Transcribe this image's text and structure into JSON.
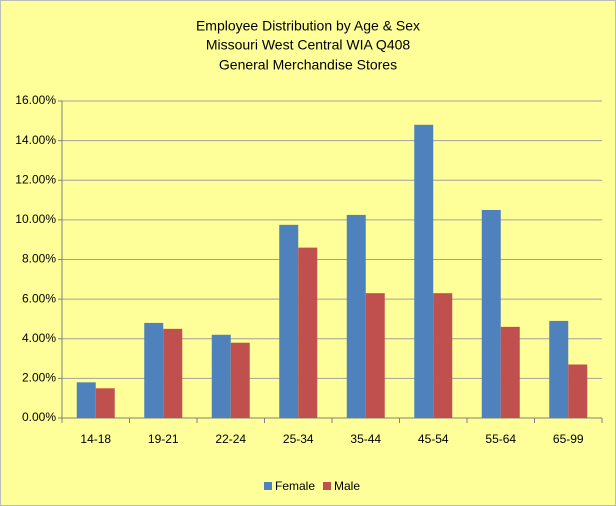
{
  "chart_data": {
    "type": "bar",
    "title": [
      "Employee Distribution by Age & Sex",
      "Missouri West Central WIA Q408",
      "General Merchandise Stores"
    ],
    "categories": [
      "14-18",
      "19-21",
      "22-24",
      "25-34",
      "35-44",
      "45-54",
      "55-64",
      "65-99"
    ],
    "series": [
      {
        "name": "Female",
        "color": "#4f81bd",
        "values": [
          1.8,
          4.8,
          4.2,
          9.75,
          10.25,
          14.8,
          10.5,
          4.9
        ]
      },
      {
        "name": "Male",
        "color": "#c0504d",
        "values": [
          1.5,
          4.5,
          3.8,
          8.6,
          6.3,
          6.3,
          4.6,
          2.7
        ]
      }
    ],
    "ylim": [
      0,
      16
    ],
    "yticks": [
      {
        "value": 0,
        "label": "0.00%"
      },
      {
        "value": 2,
        "label": "2.00%"
      },
      {
        "value": 4,
        "label": "4.00%"
      },
      {
        "value": 6,
        "label": "6.00%"
      },
      {
        "value": 8,
        "label": "8.00%"
      },
      {
        "value": 10,
        "label": "10.00%"
      },
      {
        "value": 12,
        "label": "12.00%"
      },
      {
        "value": 14,
        "label": "14.00%"
      },
      {
        "value": 16,
        "label": "16.00%"
      }
    ],
    "grid": true,
    "legend": "bottom"
  }
}
